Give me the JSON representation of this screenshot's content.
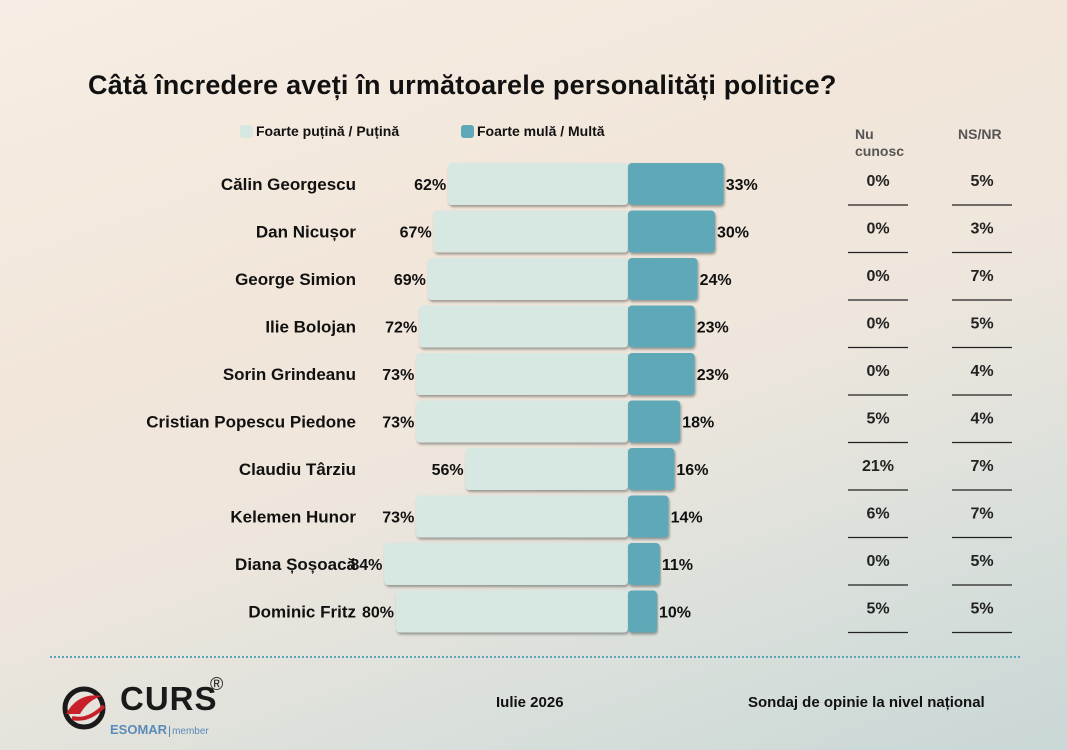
{
  "title": "Câtă încredere aveți în următoarele personalități politice?",
  "legend": {
    "low_label": "Foarte puțină / Puțină",
    "high_label": "Foarte mulă / Multă"
  },
  "columns": {
    "dont_know": "Nu cunosc",
    "ns_nr": "NS/NR"
  },
  "colors": {
    "low": "#d7e7e2",
    "high": "#5ea8b7",
    "accent": "#5aa6b6",
    "logo_red": "#c8202a"
  },
  "chart_data": {
    "type": "bar",
    "stacked": "diverging",
    "categories": [
      "Călin Georgescu",
      "Dan Nicușor",
      "George Simion",
      "Ilie Bolojan",
      "Sorin Grindeanu",
      "Cristian Popescu Piedone",
      "Claudiu Târziu",
      "Kelemen Hunor",
      "Diana Șoșoacă",
      "Dominic Fritz"
    ],
    "series": [
      {
        "name": "Foarte puțină / Puțină",
        "values": [
          62,
          67,
          69,
          72,
          73,
          73,
          56,
          73,
          84,
          80
        ]
      },
      {
        "name": "Foarte mulă / Multă",
        "values": [
          33,
          30,
          24,
          23,
          23,
          18,
          16,
          14,
          11,
          10
        ]
      },
      {
        "name": "Nu cunosc",
        "values": [
          0,
          0,
          0,
          0,
          0,
          5,
          21,
          6,
          0,
          5
        ]
      },
      {
        "name": "NS/NR",
        "values": [
          5,
          3,
          7,
          5,
          4,
          4,
          7,
          7,
          5,
          5
        ]
      }
    ],
    "unit": "%",
    "title": "Câtă încredere aveți în următoarele personalități politice?",
    "legend_position": "top",
    "grid": false
  },
  "footer": {
    "logo_text": "CURS",
    "logo_reg": "®",
    "esomar": "ESOMAR",
    "esomar_member": "member",
    "date": "Iulie 2026",
    "survey": "Sondaj de opinie la nivel național"
  },
  "icons": [
    "curs-logo-icon"
  ]
}
